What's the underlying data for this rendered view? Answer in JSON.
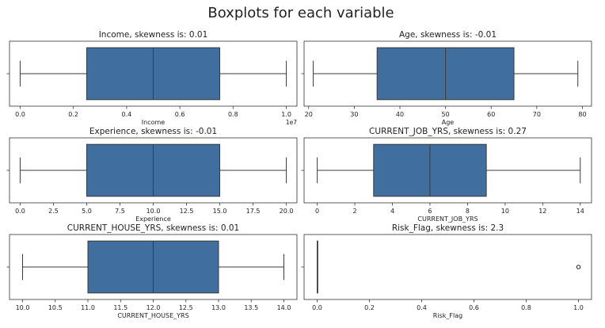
{
  "figure": {
    "title": "Boxplots for each variable"
  },
  "colors": {
    "box_fill": "#3f6e9f",
    "line": "#3b3b3b",
    "frame": "#333333",
    "background": "#ffffff"
  },
  "chart_data": [
    {
      "type": "boxplot",
      "title": "Income, skewness is: 0.01",
      "xlabel": "Income",
      "offset_label": "1e7",
      "xlim": [
        -0.04,
        1.04
      ],
      "ticks": [
        0.0,
        0.2,
        0.4,
        0.6,
        0.8,
        1.0
      ],
      "tick_labels": [
        "0.0",
        "0.2",
        "0.4",
        "0.6",
        "0.8",
        "1.0"
      ],
      "whisker_low": 0.0,
      "q1": 0.25,
      "median": 0.5,
      "q3": 0.75,
      "whisker_high": 1.0,
      "outliers": []
    },
    {
      "type": "boxplot",
      "title": "Age, skewness is: -0.01",
      "xlabel": "Age",
      "xlim": [
        19,
        82
      ],
      "ticks": [
        20,
        30,
        40,
        50,
        60,
        70,
        80
      ],
      "tick_labels": [
        "20",
        "30",
        "40",
        "50",
        "60",
        "70",
        "80"
      ],
      "whisker_low": 21,
      "q1": 35,
      "median": 50,
      "q3": 65,
      "whisker_high": 79,
      "outliers": []
    },
    {
      "type": "boxplot",
      "title": "Experience, skewness is: -0.01",
      "xlabel": "Experience",
      "xlim": [
        -0.8,
        20.8
      ],
      "ticks": [
        0,
        2.5,
        5,
        7.5,
        10,
        12.5,
        15,
        17.5,
        20
      ],
      "tick_labels": [
        "0.0",
        "2.5",
        "5.0",
        "7.5",
        "10.0",
        "12.5",
        "15.0",
        "17.5",
        "20.0"
      ],
      "whisker_low": 0,
      "q1": 5,
      "median": 10,
      "q3": 15,
      "whisker_high": 20,
      "outliers": []
    },
    {
      "type": "boxplot",
      "title": "CURRENT_JOB_YRS, skewness is: 0.27",
      "xlabel": "CURRENT_JOB_YRS",
      "xlim": [
        -0.7,
        14.6
      ],
      "ticks": [
        0,
        2,
        4,
        6,
        8,
        10,
        12,
        14
      ],
      "tick_labels": [
        "0",
        "2",
        "4",
        "6",
        "8",
        "10",
        "12",
        "14"
      ],
      "whisker_low": 0,
      "q1": 3,
      "median": 6,
      "q3": 9,
      "whisker_high": 14,
      "outliers": []
    },
    {
      "type": "boxplot",
      "title": "CURRENT_HOUSE_YRS, skewness is: 0.01",
      "xlabel": "CURRENT_HOUSE_YRS",
      "xlim": [
        9.8,
        14.2
      ],
      "ticks": [
        10.0,
        10.5,
        11.0,
        11.5,
        12.0,
        12.5,
        13.0,
        13.5,
        14.0
      ],
      "tick_labels": [
        "10.0",
        "10.5",
        "11.0",
        "11.5",
        "12.0",
        "12.5",
        "13.0",
        "13.5",
        "14.0"
      ],
      "whisker_low": 10,
      "q1": 11,
      "median": 12,
      "q3": 13,
      "whisker_high": 14,
      "outliers": []
    },
    {
      "type": "boxplot",
      "title": "Risk_Flag, skewness is: 2.3",
      "xlabel": "Risk_Flag",
      "xlim": [
        -0.05,
        1.05
      ],
      "ticks": [
        0.0,
        0.2,
        0.4,
        0.6,
        0.8,
        1.0
      ],
      "tick_labels": [
        "0.0",
        "0.2",
        "0.4",
        "0.6",
        "0.8",
        "1.0"
      ],
      "whisker_low": 0,
      "q1": 0,
      "median": 0,
      "q3": 0,
      "whisker_high": 0,
      "outliers": [
        1
      ]
    }
  ]
}
